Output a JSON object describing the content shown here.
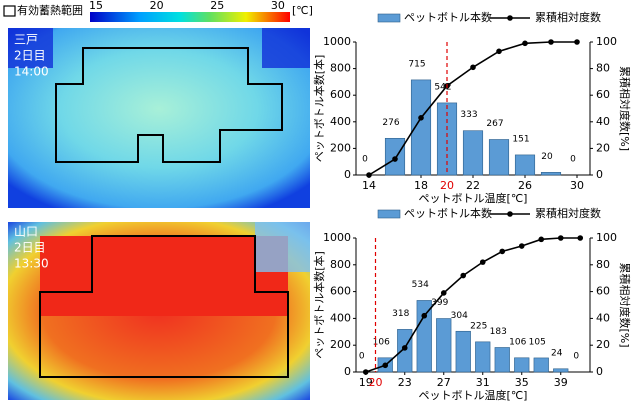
{
  "heatmap_legend": {
    "range_label": "有効蓄熱範囲",
    "ticks": [
      15,
      20,
      25,
      30
    ],
    "lim": [
      14.5,
      31
    ],
    "unit": "[℃]"
  },
  "panels": [
    {
      "site": "三戸",
      "day": "2日目",
      "time": "14:00"
    },
    {
      "site": "山口",
      "day": "2日目",
      "time": "13:30"
    }
  ],
  "chart_data": [
    {
      "type": "bar",
      "x": [
        14,
        16,
        18,
        20,
        22,
        24,
        26,
        28,
        30
      ],
      "xlim": [
        13,
        31
      ],
      "xticks": [
        14,
        18,
        22,
        26,
        30
      ],
      "ylim": [
        0,
        1000
      ],
      "yticks": [
        0,
        200,
        400,
        600,
        800,
        1000
      ],
      "y2lim": [
        0,
        100
      ],
      "y2ticks": [
        0,
        20,
        40,
        60,
        80,
        100
      ],
      "xlabel": "ペットボトル温度[℃]",
      "ylabel": "ペットボトル本数[本]",
      "y2label": "累積相対度数[%]",
      "reference_line": {
        "x": 20,
        "color": "#e00000"
      },
      "series": [
        {
          "name": "ペットボトル本数",
          "type": "bar",
          "color": "#5b9bd5",
          "values": [
            0,
            276,
            715,
            542,
            333,
            267,
            151,
            20,
            0
          ]
        },
        {
          "name": "累積相対度数",
          "type": "line",
          "axis": "y2",
          "color": "#000000",
          "values": [
            0,
            12,
            43,
            67,
            81,
            93,
            99,
            100,
            100
          ]
        }
      ]
    },
    {
      "type": "bar",
      "x": [
        19,
        21,
        23,
        25,
        27,
        29,
        31,
        33,
        35,
        37,
        39,
        41
      ],
      "xlim": [
        18,
        42
      ],
      "xticks": [
        19,
        23,
        27,
        31,
        35,
        39
      ],
      "ylim": [
        0,
        1000
      ],
      "yticks": [
        0,
        200,
        400,
        600,
        800,
        1000
      ],
      "y2lim": [
        0,
        100
      ],
      "y2ticks": [
        0,
        20,
        40,
        60,
        80,
        100
      ],
      "xlabel": "ペットボトル温度[℃]",
      "ylabel": "ペットボトル本数[本]",
      "y2label": "累積相対度数[%]",
      "reference_line": {
        "x": 20,
        "color": "#e00000"
      },
      "series": [
        {
          "name": "ペットボトル本数",
          "type": "bar",
          "color": "#5b9bd5",
          "values": [
            0,
            106,
            318,
            534,
            399,
            304,
            225,
            183,
            106,
            105,
            24,
            0
          ]
        },
        {
          "name": "累積相対度数",
          "type": "line",
          "axis": "y2",
          "color": "#000000",
          "values": [
            0,
            5,
            18,
            42,
            59,
            72,
            82,
            90,
            94,
            99,
            100,
            100
          ]
        }
      ]
    }
  ]
}
